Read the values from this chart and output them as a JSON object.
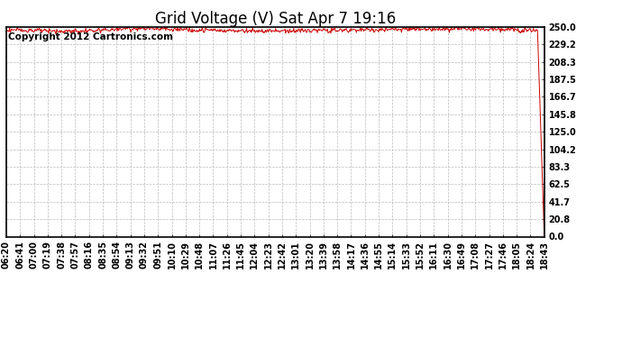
{
  "title": "Grid Voltage (V) Sat Apr 7 19:16",
  "copyright_text": "Copyright 2012 Cartronics.com",
  "line_color": "#cc0000",
  "background_color": "#ffffff",
  "plot_bg_color": "#ffffff",
  "ylim": [
    0.0,
    250.0
  ],
  "yticks": [
    0.0,
    20.8,
    41.7,
    62.5,
    83.3,
    104.2,
    125.0,
    145.8,
    166.7,
    187.5,
    208.3,
    229.2,
    250.0
  ],
  "ytick_labels": [
    "0.0",
    "20.8",
    "41.7",
    "62.5",
    "83.3",
    "104.2",
    "125.0",
    "145.8",
    "166.7",
    "187.5",
    "208.3",
    "229.2",
    "250.0"
  ],
  "xtick_labels": [
    "06:20",
    "06:41",
    "07:00",
    "07:19",
    "07:38",
    "07:57",
    "08:16",
    "08:35",
    "08:54",
    "09:13",
    "09:32",
    "09:51",
    "10:10",
    "10:29",
    "10:48",
    "11:07",
    "11:26",
    "11:45",
    "12:04",
    "12:23",
    "12:42",
    "13:01",
    "13:20",
    "13:39",
    "13:58",
    "14:17",
    "14:36",
    "14:55",
    "15:14",
    "15:33",
    "15:52",
    "16:11",
    "16:30",
    "16:49",
    "17:08",
    "17:27",
    "17:46",
    "18:05",
    "18:24",
    "18:43"
  ],
  "grid_color": "#bbbbbb",
  "grid_linestyle": "--",
  "title_fontsize": 12,
  "tick_fontsize": 7,
  "copyright_fontsize": 7.5,
  "line_width": 0.7,
  "voltage_mean": 246.5,
  "voltage_noise": 1.2,
  "num_points": 800,
  "border_color": "#000000"
}
